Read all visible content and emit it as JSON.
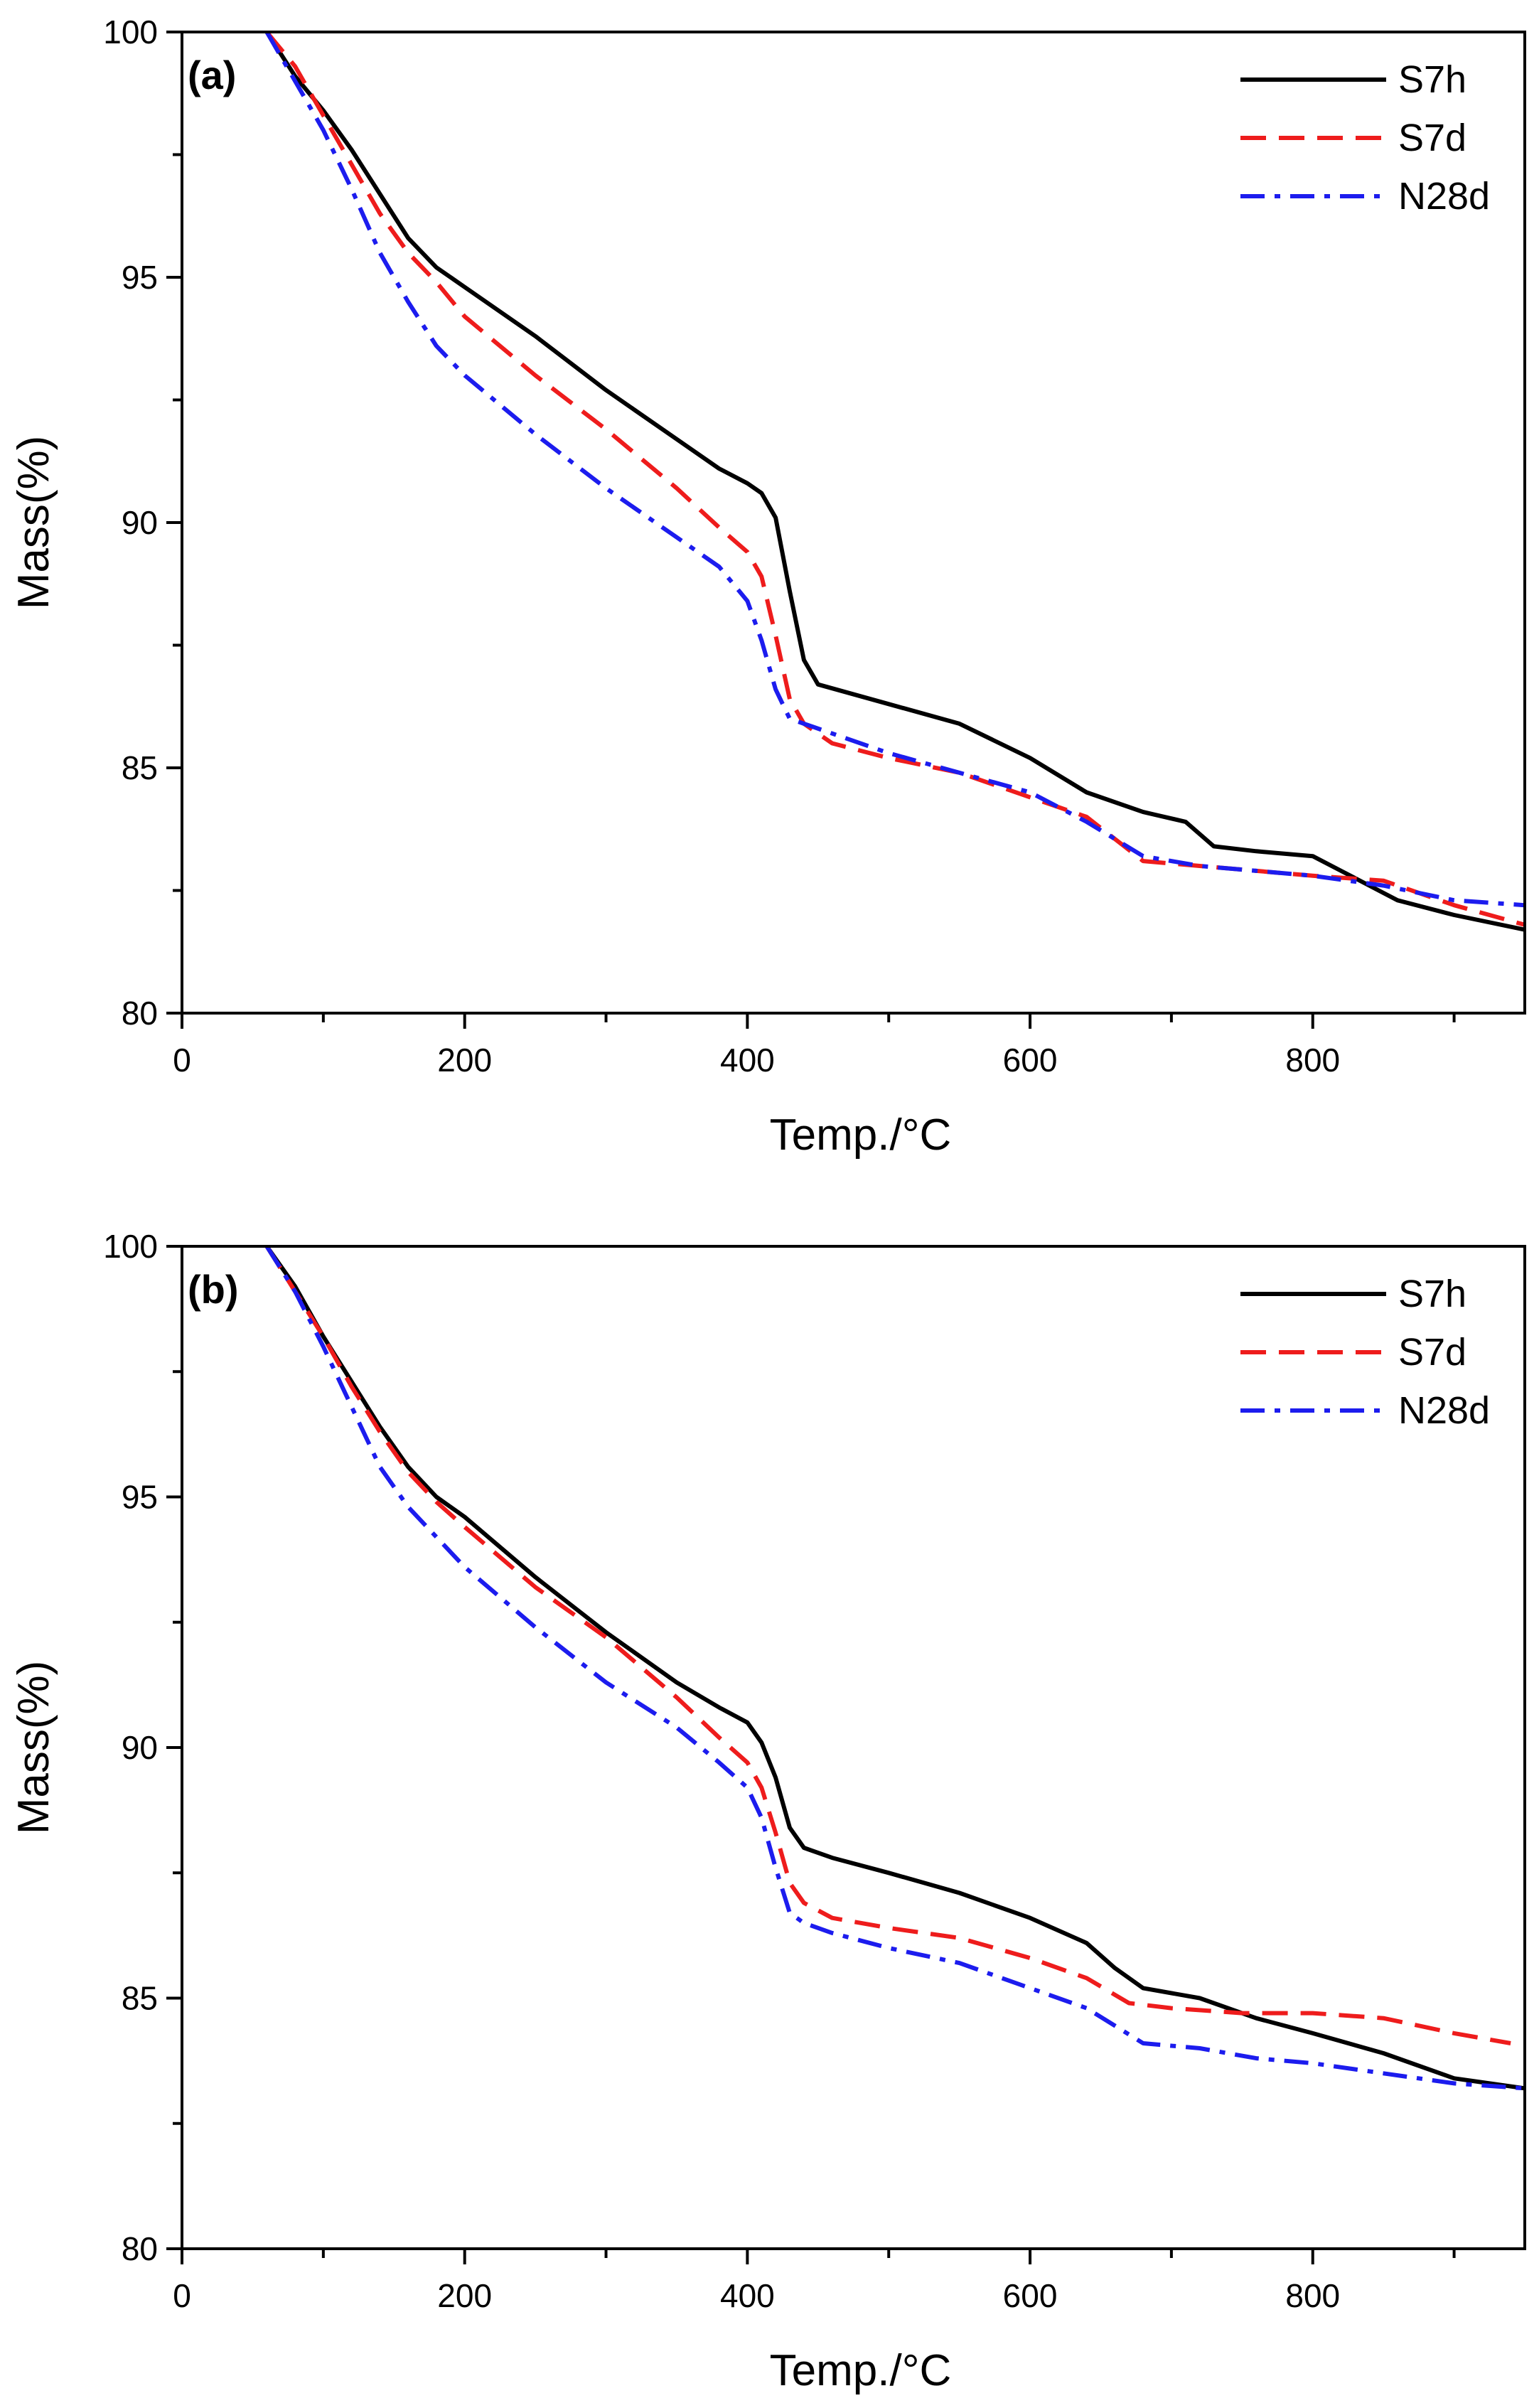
{
  "chart_data": [
    {
      "type": "line",
      "panel_label": "(a)",
      "xlabel": "Temp./°C",
      "ylabel": "Mass(%)",
      "xlim": [
        0,
        950
      ],
      "ylim": [
        80,
        100
      ],
      "x_ticks": [
        0,
        200,
        400,
        600,
        800
      ],
      "y_ticks": [
        80,
        85,
        90,
        95,
        100
      ],
      "x_tick_labels": [
        "0",
        "200",
        "400",
        "600",
        "800"
      ],
      "y_tick_labels": [
        "80",
        "85",
        "90",
        "95",
        "100"
      ],
      "grid": false,
      "legend_position": "top-right",
      "series": [
        {
          "name": "S7h",
          "color": "#000000",
          "style": "solid",
          "x": [
            60,
            80,
            100,
            120,
            140,
            160,
            180,
            200,
            250,
            300,
            350,
            380,
            400,
            410,
            420,
            430,
            440,
            450,
            500,
            550,
            600,
            640,
            680,
            710,
            730,
            760,
            800,
            820,
            840,
            860,
            900,
            950
          ],
          "y": [
            100,
            99.1,
            98.4,
            97.6,
            96.7,
            95.8,
            95.2,
            94.8,
            93.8,
            92.7,
            91.7,
            91.1,
            90.8,
            90.6,
            90.1,
            88.6,
            87.2,
            86.7,
            86.3,
            85.9,
            85.2,
            84.5,
            84.1,
            83.9,
            83.4,
            83.3,
            83.2,
            82.9,
            82.6,
            82.3,
            82.0,
            81.7
          ]
        },
        {
          "name": "S7d",
          "color": "#ee1c1c",
          "style": "dashed",
          "x": [
            60,
            80,
            100,
            120,
            140,
            160,
            180,
            200,
            250,
            300,
            350,
            380,
            400,
            410,
            420,
            430,
            440,
            460,
            500,
            550,
            600,
            640,
            680,
            720,
            760,
            800,
            850,
            900,
            950
          ],
          "y": [
            100,
            99.3,
            98.3,
            97.3,
            96.3,
            95.5,
            94.9,
            94.2,
            93.0,
            91.9,
            90.7,
            89.9,
            89.4,
            88.9,
            87.7,
            86.4,
            85.9,
            85.5,
            85.2,
            84.9,
            84.4,
            84.0,
            83.1,
            83.0,
            82.9,
            82.8,
            82.7,
            82.2,
            81.8
          ]
        },
        {
          "name": "N28d",
          "color": "#1c1cee",
          "style": "dashdot",
          "x": [
            60,
            80,
            100,
            120,
            140,
            160,
            180,
            200,
            250,
            300,
            350,
            380,
            400,
            410,
            420,
            430,
            440,
            460,
            500,
            550,
            600,
            640,
            680,
            720,
            760,
            800,
            850,
            900,
            950
          ],
          "y": [
            100,
            99.0,
            98.0,
            96.8,
            95.5,
            94.5,
            93.6,
            93.0,
            91.8,
            90.7,
            89.7,
            89.1,
            88.4,
            87.6,
            86.6,
            86.0,
            85.9,
            85.7,
            85.3,
            84.9,
            84.5,
            83.9,
            83.2,
            83.0,
            82.9,
            82.8,
            82.6,
            82.3,
            82.2
          ]
        }
      ]
    },
    {
      "type": "line",
      "panel_label": "(b)",
      "xlabel": "Temp./°C",
      "ylabel": "Mass(%)",
      "xlim": [
        0,
        950
      ],
      "ylim": [
        80,
        100
      ],
      "x_ticks": [
        0,
        200,
        400,
        600,
        800
      ],
      "y_ticks": [
        80,
        85,
        90,
        95,
        100
      ],
      "x_tick_labels": [
        "0",
        "200",
        "400",
        "600",
        "800"
      ],
      "y_tick_labels": [
        "80",
        "85",
        "90",
        "95",
        "100"
      ],
      "grid": false,
      "legend_position": "top-right",
      "series": [
        {
          "name": "S7h",
          "color": "#000000",
          "style": "solid",
          "x": [
            60,
            80,
            100,
            120,
            140,
            160,
            180,
            200,
            250,
            300,
            350,
            380,
            400,
            410,
            420,
            430,
            440,
            460,
            500,
            550,
            600,
            640,
            660,
            680,
            720,
            760,
            800,
            850,
            900,
            950
          ],
          "y": [
            100,
            99.2,
            98.2,
            97.3,
            96.4,
            95.6,
            95.0,
            94.6,
            93.4,
            92.3,
            91.3,
            90.8,
            90.5,
            90.1,
            89.4,
            88.4,
            88.0,
            87.8,
            87.5,
            87.1,
            86.6,
            86.1,
            85.6,
            85.2,
            85.0,
            84.6,
            84.3,
            83.9,
            83.4,
            83.2
          ]
        },
        {
          "name": "S7d",
          "color": "#ee1c1c",
          "style": "dashed",
          "x": [
            60,
            80,
            100,
            120,
            140,
            160,
            180,
            200,
            250,
            300,
            350,
            380,
            400,
            410,
            420,
            430,
            440,
            460,
            500,
            550,
            600,
            640,
            670,
            700,
            750,
            800,
            850,
            900,
            940
          ],
          "y": [
            100,
            99.1,
            98.2,
            97.2,
            96.3,
            95.5,
            94.9,
            94.4,
            93.2,
            92.2,
            91.0,
            90.2,
            89.7,
            89.2,
            88.3,
            87.3,
            86.9,
            86.6,
            86.4,
            86.2,
            85.8,
            85.4,
            84.9,
            84.8,
            84.7,
            84.7,
            84.6,
            84.3,
            84.1
          ]
        },
        {
          "name": "N28d",
          "color": "#1c1cee",
          "style": "dashdot",
          "x": [
            60,
            80,
            100,
            120,
            140,
            160,
            180,
            200,
            250,
            300,
            350,
            380,
            400,
            410,
            420,
            430,
            440,
            460,
            500,
            550,
            600,
            640,
            680,
            720,
            760,
            800,
            850,
            900,
            950
          ],
          "y": [
            100,
            99.1,
            98.0,
            96.8,
            95.6,
            94.8,
            94.2,
            93.6,
            92.4,
            91.3,
            90.4,
            89.7,
            89.2,
            88.6,
            87.6,
            86.7,
            86.5,
            86.3,
            86.0,
            85.7,
            85.2,
            84.8,
            84.1,
            84.0,
            83.8,
            83.7,
            83.5,
            83.3,
            83.2
          ]
        }
      ]
    }
  ]
}
